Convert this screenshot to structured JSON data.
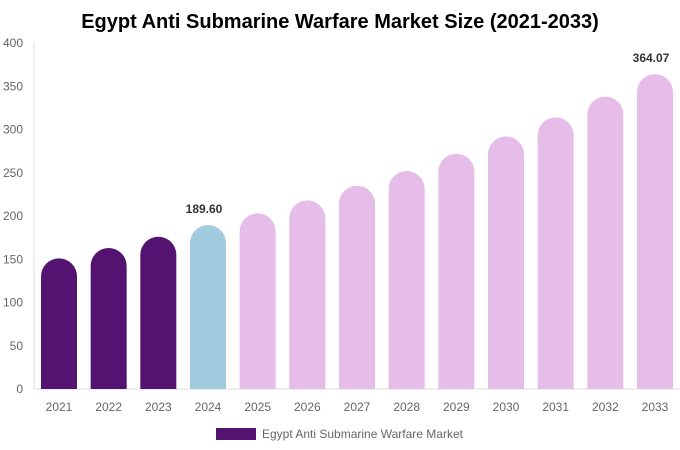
{
  "chart_data": {
    "type": "bar",
    "title": "Egypt Anti Submarine Warfare Market Size (2021-2033)",
    "xlabel": "",
    "ylabel": "",
    "ylim": [
      0,
      400
    ],
    "yticks": [
      0,
      50,
      100,
      150,
      200,
      250,
      300,
      350,
      400
    ],
    "grid": false,
    "legend_position": "bottom",
    "categories": [
      "2021",
      "2022",
      "2023",
      "2024",
      "2025",
      "2026",
      "2027",
      "2028",
      "2029",
      "2030",
      "2031",
      "2032",
      "2033"
    ],
    "series": [
      {
        "name": "Egypt Anti Submarine Warfare Market",
        "values": [
          151,
          163,
          176,
          189.6,
          203,
          218,
          235,
          252,
          272,
          292,
          314,
          338,
          364.07
        ]
      }
    ],
    "data_labels": [
      {
        "category": "2024",
        "text": "189.60"
      },
      {
        "category": "2033",
        "text": "364.07"
      }
    ],
    "colors": {
      "historical": "#541271",
      "current": "#a3cbdf",
      "forecast": "#e6bce8",
      "legend": "#541271"
    }
  }
}
